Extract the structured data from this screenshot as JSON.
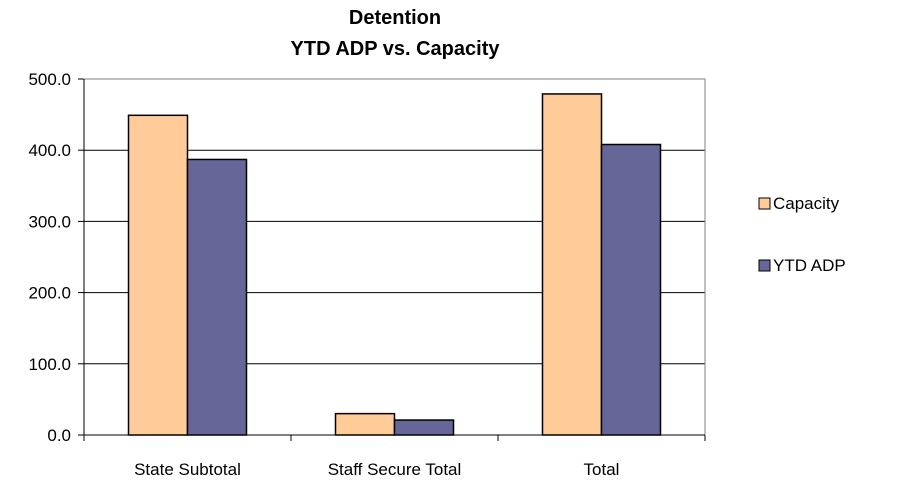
{
  "chart_data": {
    "type": "bar",
    "title": [
      "Detention",
      "YTD ADP vs. Capacity"
    ],
    "categories": [
      "State Subtotal",
      "Staff Secure Total",
      "Total"
    ],
    "series": [
      {
        "name": "Capacity",
        "values": [
          449,
          30,
          479
        ],
        "color": "#ffcc99"
      },
      {
        "name": "YTD ADP",
        "values": [
          387,
          21,
          408
        ],
        "color": "#666699"
      }
    ],
    "ylim": [
      0,
      500
    ],
    "yticks": [
      "0.0",
      "100.0",
      "200.0",
      "300.0",
      "400.0",
      "500.0"
    ],
    "grid": true,
    "legend": "right"
  }
}
